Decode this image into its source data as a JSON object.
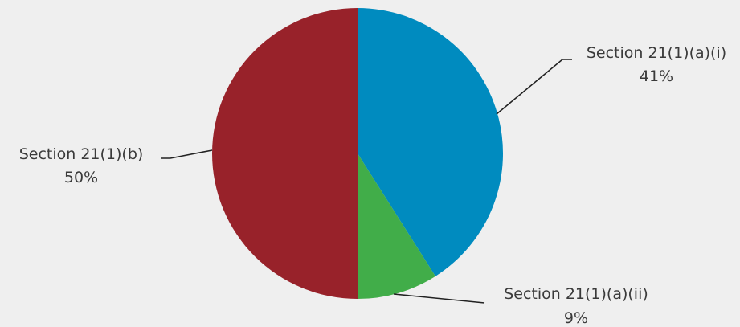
{
  "chart_data": {
    "type": "pie",
    "title": "",
    "start_angle_deg": 0,
    "direction": "clockwise",
    "slices": [
      {
        "label": "Section 21(1)(a)(i)",
        "value": 41,
        "value_label": "41%",
        "color": "#008bbf"
      },
      {
        "label": "Section 21(1)(a)(ii)",
        "value": 9,
        "value_label": "9%",
        "color": "#41ad49"
      },
      {
        "label": "Section 21(1)(b)",
        "value": 50,
        "value_label": "50%",
        "color": "#98222a"
      }
    ]
  }
}
